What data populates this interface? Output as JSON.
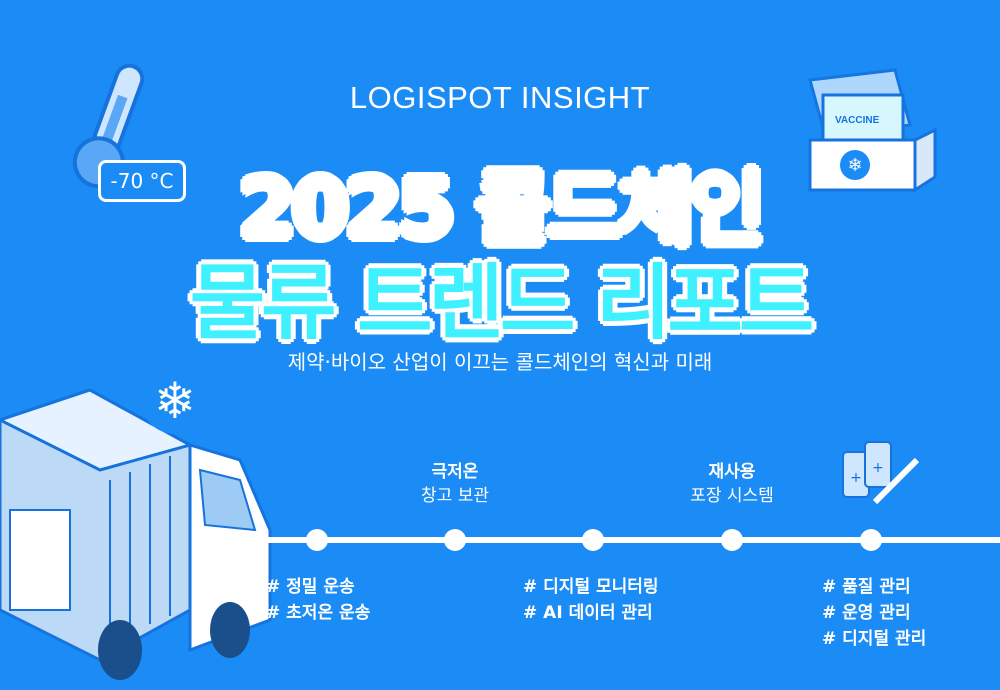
{
  "brand": "LOGISPOT INSIGHT",
  "title": {
    "line1": "2025 콜드체인",
    "line2": "물류 트렌드 리포트"
  },
  "subtitle": "제약·바이오 산업이 이끄는 콜드체인의 혁신과 미래",
  "thermometer": {
    "reading": "-70 °C"
  },
  "cooler": {
    "label": "VACCINE"
  },
  "timeline": {
    "labels": [
      {
        "bold": "극저온",
        "text": "창고 보관"
      },
      {
        "bold": "재사용",
        "text": "포장 시스템"
      }
    ],
    "tags": [
      [
        "# 정밀 운송",
        "# 초저온 운송"
      ],
      [
        "# 디지털 모니터링",
        "# AI 데이터 관리"
      ],
      [
        "# 품질 관리",
        "# 운영 관리",
        "# 디지털 관리"
      ]
    ]
  },
  "colors": {
    "background": "#1b8cf6",
    "accent": "#3ff0ff",
    "outline": "#1673de"
  },
  "icons": [
    "thermometer-icon",
    "cooler-box-icon",
    "snowflake-icon",
    "truck-icon",
    "vaccine-vials-icon"
  ]
}
